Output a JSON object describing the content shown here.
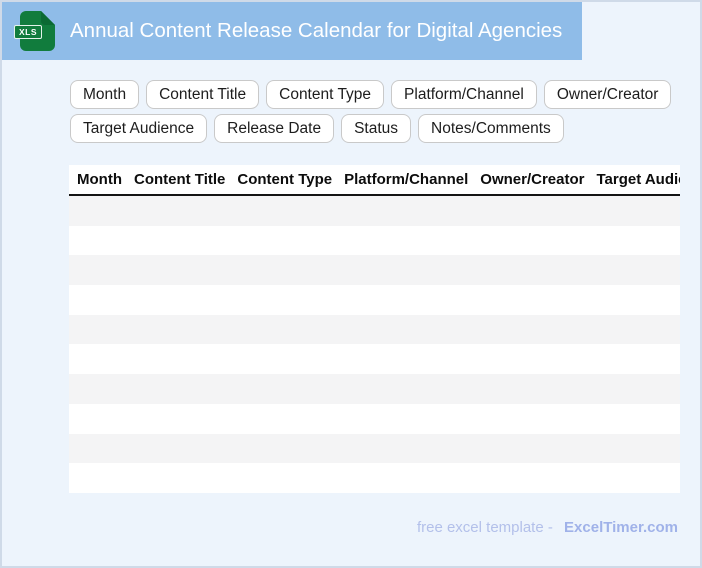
{
  "header": {
    "title": "Annual Content Release Calendar for Digital Agencies",
    "file_badge": "XLS"
  },
  "chips": {
    "row1": [
      "Month",
      "Content Title",
      "Content Type",
      "Platform/Channel",
      "Owner/Creator"
    ],
    "row2": [
      "Target Audience",
      "Release Date",
      "Status",
      "Notes/Comments"
    ]
  },
  "table": {
    "columns": [
      "Month",
      "Content Title",
      "Content Type",
      "Platform/Channel",
      "Owner/Creator",
      "Target Audience"
    ],
    "row_count": 10
  },
  "footer": {
    "note": "free excel template -",
    "brand": "ExcelTimer.com"
  },
  "colors": {
    "banner": "#8fbce8",
    "background": "#edf4fc",
    "icon_green": "#117c3d",
    "icon_fold_green": "#0b6a33",
    "row_stripe": "#f4f4f5",
    "footer_note": "#b3c0ea",
    "footer_brand": "#a0b2e9"
  }
}
